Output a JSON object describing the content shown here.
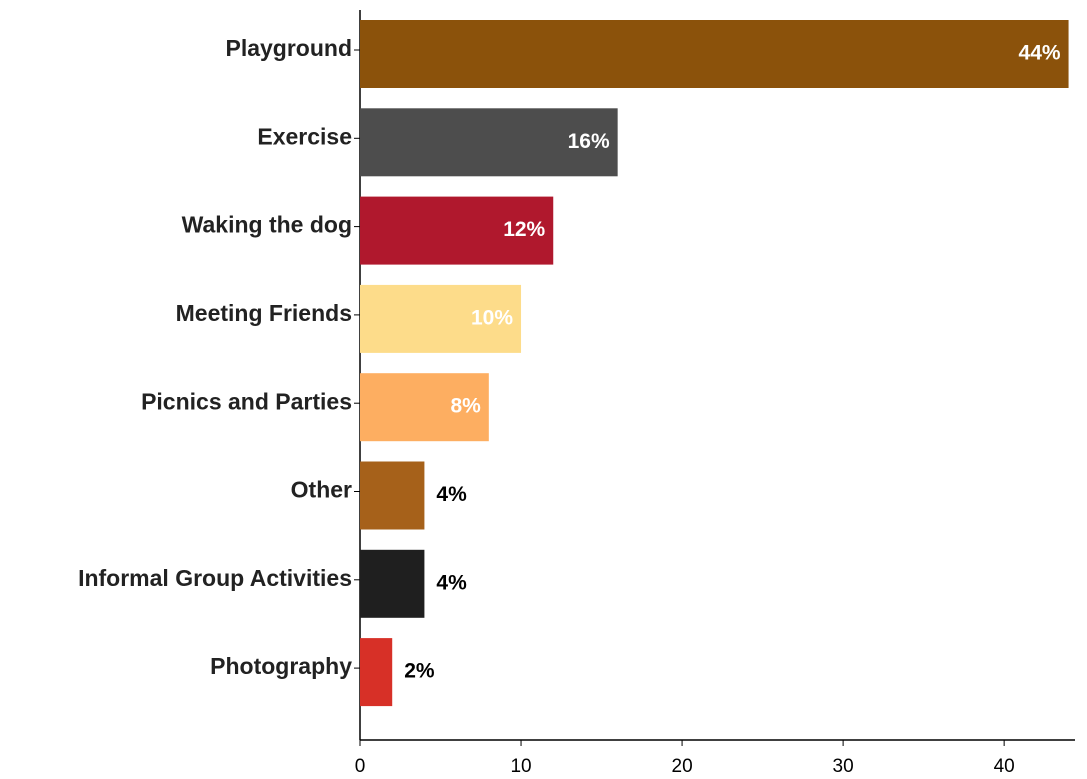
{
  "chart_data": {
    "type": "barh",
    "categories": [
      "Playground",
      "Exercise",
      "Waking the dog",
      "Meeting Friends",
      "Picnics and Parties",
      "Other",
      "Informal Group Activities",
      "Photography"
    ],
    "values": [
      44,
      16,
      12,
      10,
      8,
      4,
      4,
      2
    ],
    "value_labels": [
      "44%",
      "16%",
      "12%",
      "10%",
      "8%",
      "4%",
      "4%",
      "2%"
    ],
    "colors": [
      "#8b520b",
      "#4d4d4d",
      "#b0182d",
      "#fddc8a",
      "#fdae61",
      "#a6611a",
      "#1f1f1f",
      "#d73027"
    ],
    "xlim": [
      0,
      44.4
    ],
    "xticks": [
      0,
      10,
      20,
      30,
      40
    ],
    "grid": false
  }
}
